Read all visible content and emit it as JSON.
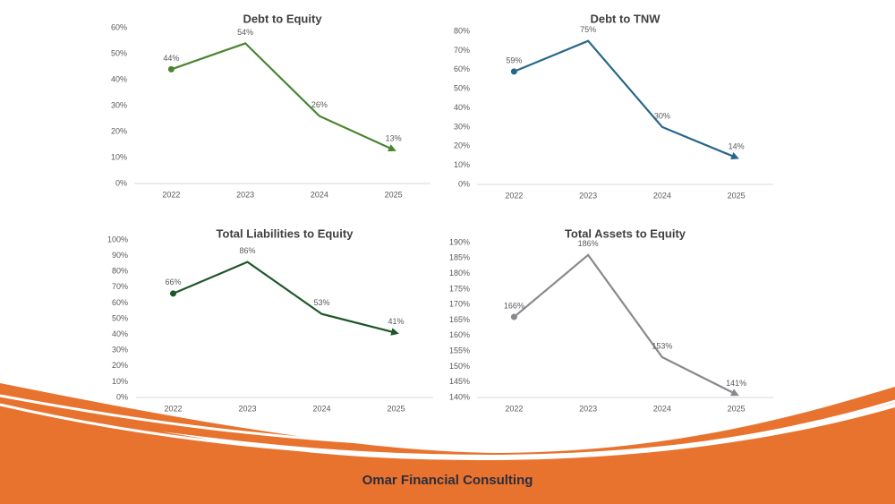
{
  "chart_data": [
    {
      "type": "line",
      "title": "Debt to Equity",
      "categories": [
        "2022",
        "2023",
        "2024",
        "2025"
      ],
      "values": [
        44,
        54,
        26,
        13
      ],
      "value_labels": [
        "44%",
        "54%",
        "26%",
        "13%"
      ],
      "color": "#4b8530",
      "ylim": [
        0,
        60
      ],
      "yticks": [
        {
          "value": 0,
          "label": "0%"
        },
        {
          "value": 10,
          "label": "10%"
        },
        {
          "value": 20,
          "label": "20%"
        },
        {
          "value": 30,
          "label": "30%"
        },
        {
          "value": 40,
          "label": "40%"
        },
        {
          "value": 50,
          "label": "50%"
        },
        {
          "value": 60,
          "label": "60%"
        }
      ],
      "grid": false
    },
    {
      "type": "line",
      "title": "Debt to TNW",
      "categories": [
        "2022",
        "2023",
        "2024",
        "2025"
      ],
      "values": [
        59,
        75,
        30,
        14
      ],
      "value_labels": [
        "59%",
        "75%",
        "30%",
        "14%"
      ],
      "color": "#27678a",
      "ylim": [
        0,
        80
      ],
      "yticks": [
        {
          "value": 0,
          "label": "0%"
        },
        {
          "value": 10,
          "label": "10%"
        },
        {
          "value": 20,
          "label": "20%"
        },
        {
          "value": 30,
          "label": "30%"
        },
        {
          "value": 40,
          "label": "40%"
        },
        {
          "value": 50,
          "label": "50%"
        },
        {
          "value": 60,
          "label": "60%"
        },
        {
          "value": 70,
          "label": "70%"
        },
        {
          "value": 80,
          "label": "80%"
        }
      ],
      "grid": false
    },
    {
      "type": "line",
      "title": "Total Liabilities to Equity",
      "categories": [
        "2022",
        "2023",
        "2024",
        "2025"
      ],
      "values": [
        66,
        86,
        53,
        41
      ],
      "value_labels": [
        "66%",
        "86%",
        "53%",
        "41%"
      ],
      "color": "#1f5628",
      "ylim": [
        0,
        100
      ],
      "yticks": [
        {
          "value": 0,
          "label": "0%"
        },
        {
          "value": 10,
          "label": "10%"
        },
        {
          "value": 20,
          "label": "20%"
        },
        {
          "value": 30,
          "label": "30%"
        },
        {
          "value": 40,
          "label": "40%"
        },
        {
          "value": 50,
          "label": "50%"
        },
        {
          "value": 60,
          "label": "60%"
        },
        {
          "value": 70,
          "label": "70%"
        },
        {
          "value": 80,
          "label": "80%"
        },
        {
          "value": 90,
          "label": "90%"
        },
        {
          "value": 100,
          "label": "100%"
        }
      ],
      "grid": false
    },
    {
      "type": "line",
      "title": "Total Assets to Equity",
      "categories": [
        "2022",
        "2023",
        "2024",
        "2025"
      ],
      "values": [
        166,
        186,
        153,
        141
      ],
      "value_labels": [
        "166%",
        "186%",
        "153%",
        "141%"
      ],
      "color": "#8a888d",
      "ylim": [
        140,
        190
      ],
      "yticks": [
        {
          "value": 140,
          "label": "140%"
        },
        {
          "value": 145,
          "label": "145%"
        },
        {
          "value": 150,
          "label": "150%"
        },
        {
          "value": 155,
          "label": "155%"
        },
        {
          "value": 160,
          "label": "160%"
        },
        {
          "value": 165,
          "label": "165%"
        },
        {
          "value": 170,
          "label": "170%"
        },
        {
          "value": 175,
          "label": "175%"
        },
        {
          "value": 180,
          "label": "180%"
        },
        {
          "value": 185,
          "label": "185%"
        },
        {
          "value": 190,
          "label": "190%"
        }
      ],
      "grid": false
    }
  ],
  "footer": "Omar Financial Consulting"
}
